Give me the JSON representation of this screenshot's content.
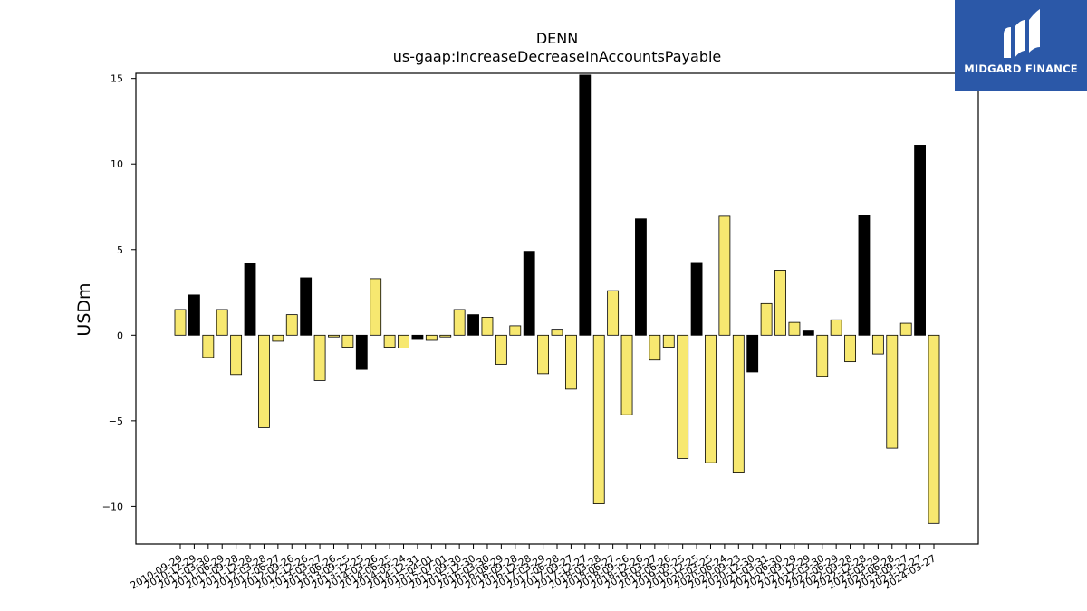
{
  "brand": {
    "name": "MIDGARD FINANCE",
    "bg_color": "#2b58a8"
  },
  "chart_data": {
    "type": "bar",
    "title": "DENN",
    "subtitle": "us-gaap:IncreaseDecreaseInAccountsPayable",
    "xlabel": "",
    "ylabel": "USDm",
    "ylim": [
      -12.2,
      15.3
    ],
    "yticks": [
      -10,
      -5,
      0,
      5,
      10,
      15
    ],
    "ytick_labels": [
      "−10",
      "−5",
      "0",
      "5",
      "10",
      "15"
    ],
    "grid": false,
    "colors": {
      "quarter": "#f7e870",
      "annual": "#000000"
    },
    "categories": [
      "2010-09-29",
      "2010-12-29",
      "2011-03-30",
      "2011-06-29",
      "2011-09-28",
      "2011-12-28",
      "2012-03-28",
      "2012-06-27",
      "2012-09-26",
      "2012-12-26",
      "2013-03-27",
      "2013-06-26",
      "2013-09-25",
      "2013-12-25",
      "2014-03-26",
      "2014-06-25",
      "2014-09-24",
      "2014-12-31",
      "2015-04-01",
      "2015-07-01",
      "2015-09-30",
      "2015-12-30",
      "2016-03-30",
      "2016-06-29",
      "2016-09-28",
      "2016-12-28",
      "2017-03-29",
      "2017-06-28",
      "2017-09-27",
      "2017-12-27",
      "2018-03-28",
      "2018-06-27",
      "2018-09-26",
      "2018-12-26",
      "2019-03-27",
      "2019-06-26",
      "2019-09-25",
      "2019-12-25",
      "2020-03-25",
      "2020-06-24",
      "2020-09-23",
      "2020-12-30",
      "2021-03-31",
      "2021-06-30",
      "2021-09-29",
      "2021-12-29",
      "2022-03-30",
      "2022-06-29",
      "2022-09-28",
      "2022-12-28",
      "2023-03-29",
      "2023-06-28",
      "2023-09-27",
      "2023-12-27",
      "2024-03-27"
    ],
    "values": [
      1.5,
      2.35,
      -1.3,
      1.5,
      -2.3,
      4.2,
      -5.4,
      -0.35,
      1.2,
      3.35,
      -2.65,
      -0.1,
      -0.7,
      -2.0,
      3.3,
      -0.7,
      -0.75,
      -0.25,
      -0.3,
      -0.1,
      1.5,
      1.2,
      1.05,
      -1.7,
      0.55,
      4.9,
      -2.25,
      0.3,
      -3.15,
      15.2,
      -9.85,
      2.6,
      -4.65,
      6.8,
      -1.45,
      -0.7,
      -7.2,
      4.25,
      -7.45,
      6.95,
      -8.0,
      -2.15,
      1.85,
      3.8,
      0.75,
      0.25,
      -2.4,
      0.9,
      -1.55,
      7.0,
      -1.1,
      -6.6,
      0.7,
      11.1,
      -11.0
    ],
    "annual": [
      false,
      true,
      false,
      false,
      false,
      true,
      false,
      false,
      false,
      true,
      false,
      false,
      false,
      true,
      false,
      false,
      false,
      true,
      false,
      false,
      false,
      true,
      false,
      false,
      false,
      true,
      false,
      false,
      false,
      true,
      false,
      false,
      false,
      true,
      false,
      false,
      false,
      true,
      false,
      false,
      false,
      true,
      false,
      false,
      false,
      true,
      false,
      false,
      false,
      true,
      false,
      false,
      false,
      true,
      false
    ]
  }
}
